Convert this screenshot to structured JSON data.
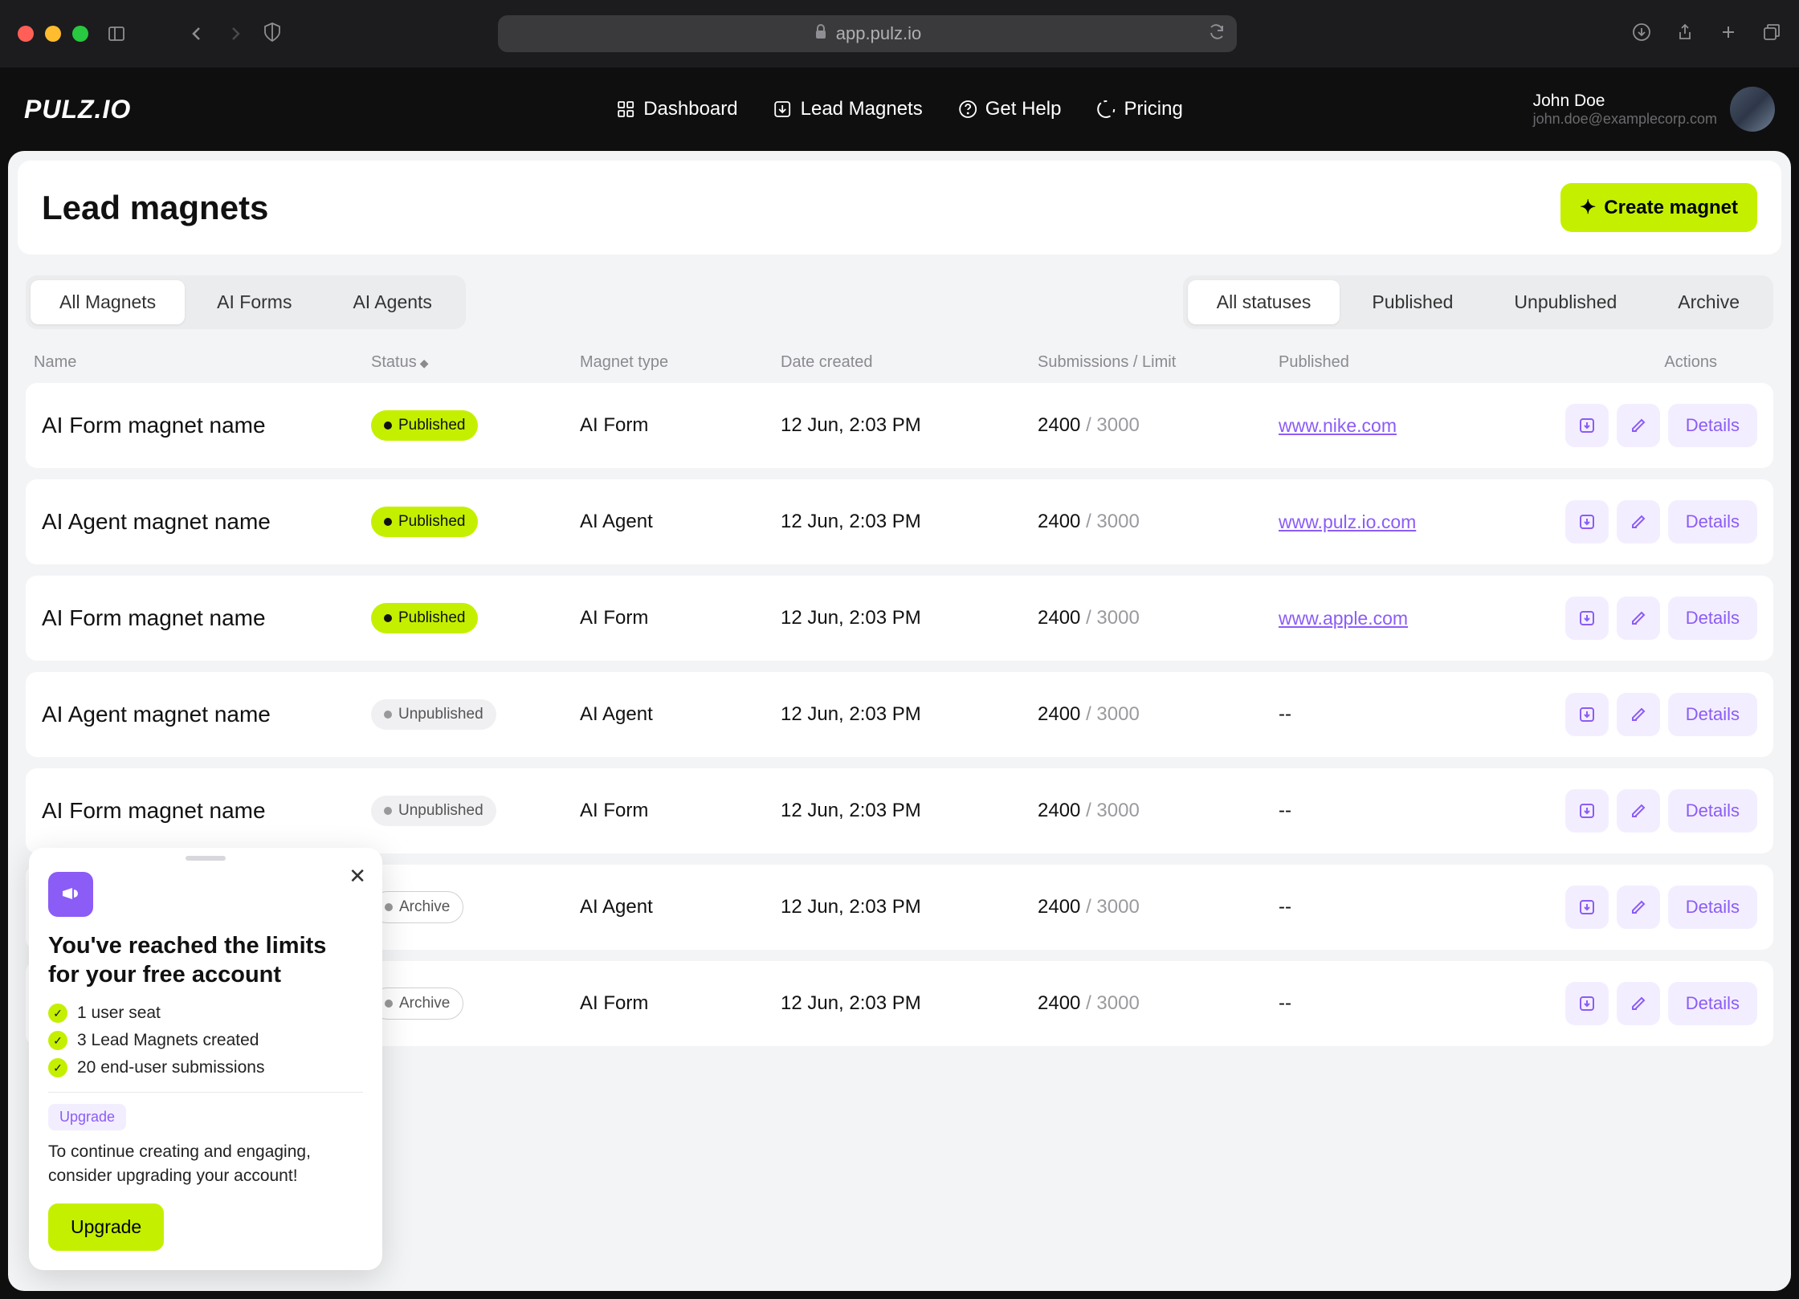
{
  "browser": {
    "url": "app.pulz.io"
  },
  "app": {
    "logo": "PULZ.IO",
    "nav": {
      "dashboard": "Dashboard",
      "lead_magnets": "Lead Magnets",
      "get_help": "Get Help",
      "pricing": "Pricing"
    },
    "user": {
      "name": "John Doe",
      "email": "john.doe@examplecorp.com"
    }
  },
  "page": {
    "title": "Lead magnets",
    "create_btn": "Create magnet"
  },
  "type_tabs": {
    "all": "All Magnets",
    "forms": "AI Forms",
    "agents": "AI Agents"
  },
  "status_tabs": {
    "all": "All statuses",
    "published": "Published",
    "unpublished": "Unpublished",
    "archive": "Archive"
  },
  "columns": {
    "name": "Name",
    "status": "Status",
    "type": "Magnet type",
    "date": "Date created",
    "submissions": "Submissions / Limit",
    "published": "Published",
    "actions": "Actions"
  },
  "details_label": "Details",
  "rows": [
    {
      "name": "AI Form magnet name",
      "status": "Published",
      "status_class": "published",
      "type": "AI Form",
      "date": "12 Jun, 2:03 PM",
      "sub": "2400",
      "limit": "3000",
      "url": "www.nike.com"
    },
    {
      "name": "AI Agent magnet name",
      "status": "Published",
      "status_class": "published",
      "type": "AI Agent",
      "date": "12 Jun, 2:03 PM",
      "sub": "2400",
      "limit": "3000",
      "url": "www.pulz.io.com"
    },
    {
      "name": "AI Form magnet name",
      "status": "Published",
      "status_class": "published",
      "type": "AI Form",
      "date": "12 Jun, 2:03 PM",
      "sub": "2400",
      "limit": "3000",
      "url": "www.apple.com"
    },
    {
      "name": "AI Agent magnet name",
      "status": "Unpublished",
      "status_class": "unpublished",
      "type": "AI Agent",
      "date": "12 Jun, 2:03 PM",
      "sub": "2400",
      "limit": "3000",
      "url": "--"
    },
    {
      "name": "AI Form magnet name",
      "status": "Unpublished",
      "status_class": "unpublished",
      "type": "AI Form",
      "date": "12 Jun, 2:03 PM",
      "sub": "2400",
      "limit": "3000",
      "url": "--"
    },
    {
      "name": "",
      "status": "Archive",
      "status_class": "archive",
      "type": "AI Agent",
      "date": "12 Jun, 2:03 PM",
      "sub": "2400",
      "limit": "3000",
      "url": "--"
    },
    {
      "name": "",
      "status": "Archive",
      "status_class": "archive",
      "type": "AI Form",
      "date": "12 Jun, 2:03 PM",
      "sub": "2400",
      "limit": "3000",
      "url": "--"
    }
  ],
  "popup": {
    "title": "You've reached the limits for your free account",
    "items": [
      "1 user seat",
      "3 Lead Magnets created",
      "20 end-user submissions"
    ],
    "upgrade_label": "Upgrade",
    "desc": "To continue creating and engaging, consider upgrading your account!",
    "btn": "Upgrade"
  },
  "colors": {
    "accent_lime": "#c4f000",
    "accent_purple": "#8b5cf6",
    "bg_gray": "#f3f4f6",
    "dark": "#0f0f0f"
  }
}
